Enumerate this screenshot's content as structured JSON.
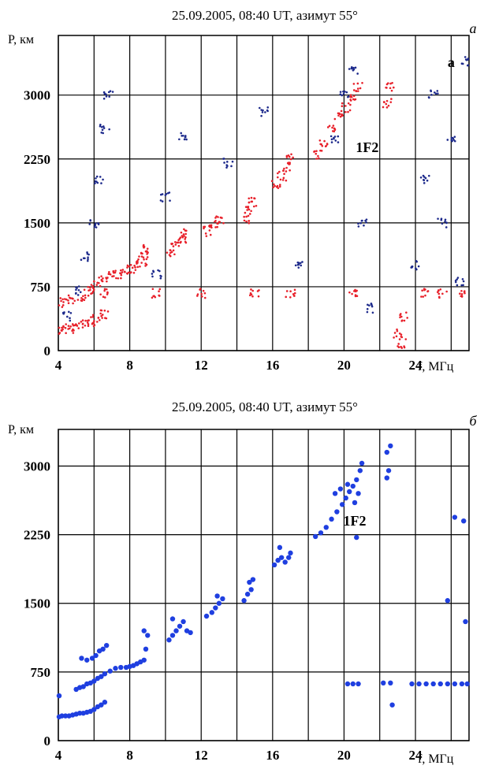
{
  "chart_data": [
    {
      "type": "scatter",
      "panel_letter": "а",
      "title": "25.09.2005, 08:40 UT, азимут 55°",
      "xlabel": "f, МГц",
      "ylabel": "P, км",
      "xlim": [
        4,
        27
      ],
      "ylim": [
        0,
        3700
      ],
      "x_ticks": [
        4,
        8,
        12,
        16,
        20,
        24
      ],
      "y_ticks": [
        0,
        750,
        1500,
        2250,
        3000
      ],
      "grid": true,
      "colors": {
        "series_a": "#e8202a",
        "series_b": "#1d2a8c"
      },
      "annotations": [
        {
          "text": "1F2",
          "x": 21.3,
          "y": 2330
        },
        {
          "text": "а",
          "x": 26.0,
          "y": 3330
        }
      ],
      "series": [
        {
          "color": "#e8202a",
          "values": [
            [
              4.2,
              240
            ],
            [
              4.6,
              260
            ],
            [
              5.0,
              280
            ],
            [
              5.4,
              310
            ],
            [
              5.8,
              340
            ],
            [
              6.2,
              380
            ],
            [
              6.6,
              420
            ],
            [
              4.3,
              560
            ],
            [
              4.8,
              600
            ],
            [
              5.3,
              640
            ],
            [
              5.7,
              700
            ],
            [
              6.1,
              760
            ],
            [
              6.5,
              820
            ],
            [
              6.9,
              870
            ],
            [
              7.3,
              900
            ],
            [
              7.7,
              930
            ],
            [
              8.1,
              960
            ],
            [
              8.4,
              1000
            ],
            [
              8.7,
              1050
            ],
            [
              8.9,
              1120
            ],
            [
              9.0,
              1200
            ],
            [
              10.3,
              1150
            ],
            [
              10.6,
              1250
            ],
            [
              10.9,
              1300
            ],
            [
              11.1,
              1380
            ],
            [
              12.4,
              1400
            ],
            [
              12.7,
              1470
            ],
            [
              13.0,
              1540
            ],
            [
              14.5,
              1550
            ],
            [
              14.7,
              1650
            ],
            [
              14.9,
              1750
            ],
            [
              16.2,
              1950
            ],
            [
              16.5,
              2050
            ],
            [
              16.8,
              2150
            ],
            [
              17.0,
              2250
            ],
            [
              18.5,
              2300
            ],
            [
              18.9,
              2450
            ],
            [
              19.3,
              2600
            ],
            [
              19.7,
              2750
            ],
            [
              20.1,
              2850
            ],
            [
              20.5,
              2950
            ],
            [
              20.8,
              3100
            ],
            [
              22.4,
              2900
            ],
            [
              22.6,
              3100
            ],
            [
              23.0,
              200
            ],
            [
              23.2,
              80
            ],
            [
              23.4,
              400
            ],
            [
              6.5,
              670
            ],
            [
              9.5,
              670
            ],
            [
              12.0,
              670
            ],
            [
              15.0,
              670
            ],
            [
              17.0,
              670
            ],
            [
              20.5,
              670
            ],
            [
              24.5,
              670
            ],
            [
              25.5,
              670
            ],
            [
              26.5,
              670
            ]
          ]
        },
        {
          "color": "#1d2a8c",
          "values": [
            [
              4.5,
              400
            ],
            [
              5.0,
              700
            ],
            [
              5.5,
              1100
            ],
            [
              6.0,
              1500
            ],
            [
              6.3,
              2000
            ],
            [
              6.6,
              2600
            ],
            [
              6.8,
              3000
            ],
            [
              9.5,
              900
            ],
            [
              10.0,
              1800
            ],
            [
              11.0,
              2500
            ],
            [
              13.5,
              2200
            ],
            [
              15.5,
              2800
            ],
            [
              17.5,
              1000
            ],
            [
              19.5,
              2500
            ],
            [
              20.0,
              3000
            ],
            [
              20.5,
              3300
            ],
            [
              21.0,
              1500
            ],
            [
              21.5,
              500
            ],
            [
              24.0,
              1000
            ],
            [
              24.5,
              2000
            ],
            [
              25.0,
              3000
            ],
            [
              25.5,
              1500
            ],
            [
              26.0,
              2500
            ],
            [
              26.5,
              800
            ],
            [
              26.8,
              3400
            ]
          ]
        }
      ]
    },
    {
      "type": "scatter",
      "panel_letter": "б",
      "title": "25.09.2005, 08:40 UT, азимут 55°",
      "xlabel": "f, МГц",
      "ylabel": "P, км",
      "xlim": [
        4,
        27
      ],
      "ylim": [
        0,
        3400
      ],
      "x_ticks": [
        4,
        8,
        12,
        16,
        20,
        24
      ],
      "y_ticks": [
        0,
        750,
        1500,
        2250,
        3000
      ],
      "grid": true,
      "colors": {
        "points": "#1f3fe0"
      },
      "annotations": [
        {
          "text": "1F2",
          "x": 20.6,
          "y": 2350
        }
      ],
      "series": [
        {
          "color": "#1f3fe0",
          "values": [
            [
              4.0,
              490
            ],
            [
              4.0,
              260
            ],
            [
              4.2,
              270
            ],
            [
              4.4,
              270
            ],
            [
              4.6,
              270
            ],
            [
              4.8,
              280
            ],
            [
              5.0,
              290
            ],
            [
              5.2,
              300
            ],
            [
              5.4,
              300
            ],
            [
              5.6,
              310
            ],
            [
              5.8,
              320
            ],
            [
              6.0,
              340
            ],
            [
              6.2,
              370
            ],
            [
              6.4,
              390
            ],
            [
              6.6,
              420
            ],
            [
              5.0,
              560
            ],
            [
              5.2,
              580
            ],
            [
              5.4,
              590
            ],
            [
              5.6,
              620
            ],
            [
              5.8,
              630
            ],
            [
              6.0,
              650
            ],
            [
              6.2,
              680
            ],
            [
              6.4,
              700
            ],
            [
              6.6,
              730
            ],
            [
              5.3,
              900
            ],
            [
              5.6,
              880
            ],
            [
              5.9,
              900
            ],
            [
              6.1,
              930
            ],
            [
              6.3,
              980
            ],
            [
              6.5,
              1000
            ],
            [
              6.7,
              1040
            ],
            [
              6.9,
              760
            ],
            [
              7.2,
              790
            ],
            [
              7.5,
              800
            ],
            [
              7.8,
              800
            ],
            [
              8.0,
              810
            ],
            [
              8.2,
              820
            ],
            [
              8.4,
              840
            ],
            [
              8.6,
              860
            ],
            [
              8.8,
              880
            ],
            [
              8.9,
              1000
            ],
            [
              9.0,
              1150
            ],
            [
              8.8,
              1200
            ],
            [
              10.2,
              1100
            ],
            [
              10.4,
              1150
            ],
            [
              10.6,
              1200
            ],
            [
              10.8,
              1250
            ],
            [
              11.0,
              1300
            ],
            [
              11.2,
              1200
            ],
            [
              11.4,
              1180
            ],
            [
              10.4,
              1330
            ],
            [
              12.3,
              1360
            ],
            [
              12.6,
              1400
            ],
            [
              12.8,
              1450
            ],
            [
              13.0,
              1500
            ],
            [
              13.2,
              1550
            ],
            [
              12.9,
              1580
            ],
            [
              14.4,
              1530
            ],
            [
              14.6,
              1600
            ],
            [
              14.8,
              1650
            ],
            [
              14.7,
              1730
            ],
            [
              14.9,
              1760
            ],
            [
              16.1,
              1920
            ],
            [
              16.3,
              1970
            ],
            [
              16.5,
              2000
            ],
            [
              16.7,
              1950
            ],
            [
              16.9,
              2000
            ],
            [
              17.0,
              2050
            ],
            [
              16.4,
              2110
            ],
            [
              18.4,
              2230
            ],
            [
              18.7,
              2270
            ],
            [
              19.0,
              2330
            ],
            [
              19.3,
              2420
            ],
            [
              19.6,
              2500
            ],
            [
              19.9,
              2580
            ],
            [
              20.1,
              2650
            ],
            [
              20.3,
              2720
            ],
            [
              20.5,
              2780
            ],
            [
              20.7,
              2850
            ],
            [
              20.9,
              2950
            ],
            [
              21.0,
              3030
            ],
            [
              19.5,
              2700
            ],
            [
              19.8,
              2750
            ],
            [
              20.2,
              2800
            ],
            [
              20.6,
              2600
            ],
            [
              20.8,
              2700
            ],
            [
              20.7,
              2220
            ],
            [
              22.4,
              2870
            ],
            [
              22.5,
              2950
            ],
            [
              22.4,
              3150
            ],
            [
              22.6,
              3220
            ],
            [
              22.7,
              390
            ],
            [
              20.2,
              620
            ],
            [
              20.5,
              620
            ],
            [
              20.8,
              620
            ],
            [
              22.2,
              630
            ],
            [
              22.6,
              630
            ],
            [
              23.8,
              620
            ],
            [
              24.2,
              620
            ],
            [
              24.6,
              620
            ],
            [
              25.0,
              620
            ],
            [
              25.4,
              620
            ],
            [
              25.8,
              620
            ],
            [
              26.2,
              620
            ],
            [
              26.6,
              620
            ],
            [
              26.9,
              620
            ],
            [
              25.8,
              1530
            ],
            [
              26.2,
              2440
            ],
            [
              26.7,
              2400
            ],
            [
              26.8,
              1300
            ]
          ]
        }
      ]
    }
  ]
}
